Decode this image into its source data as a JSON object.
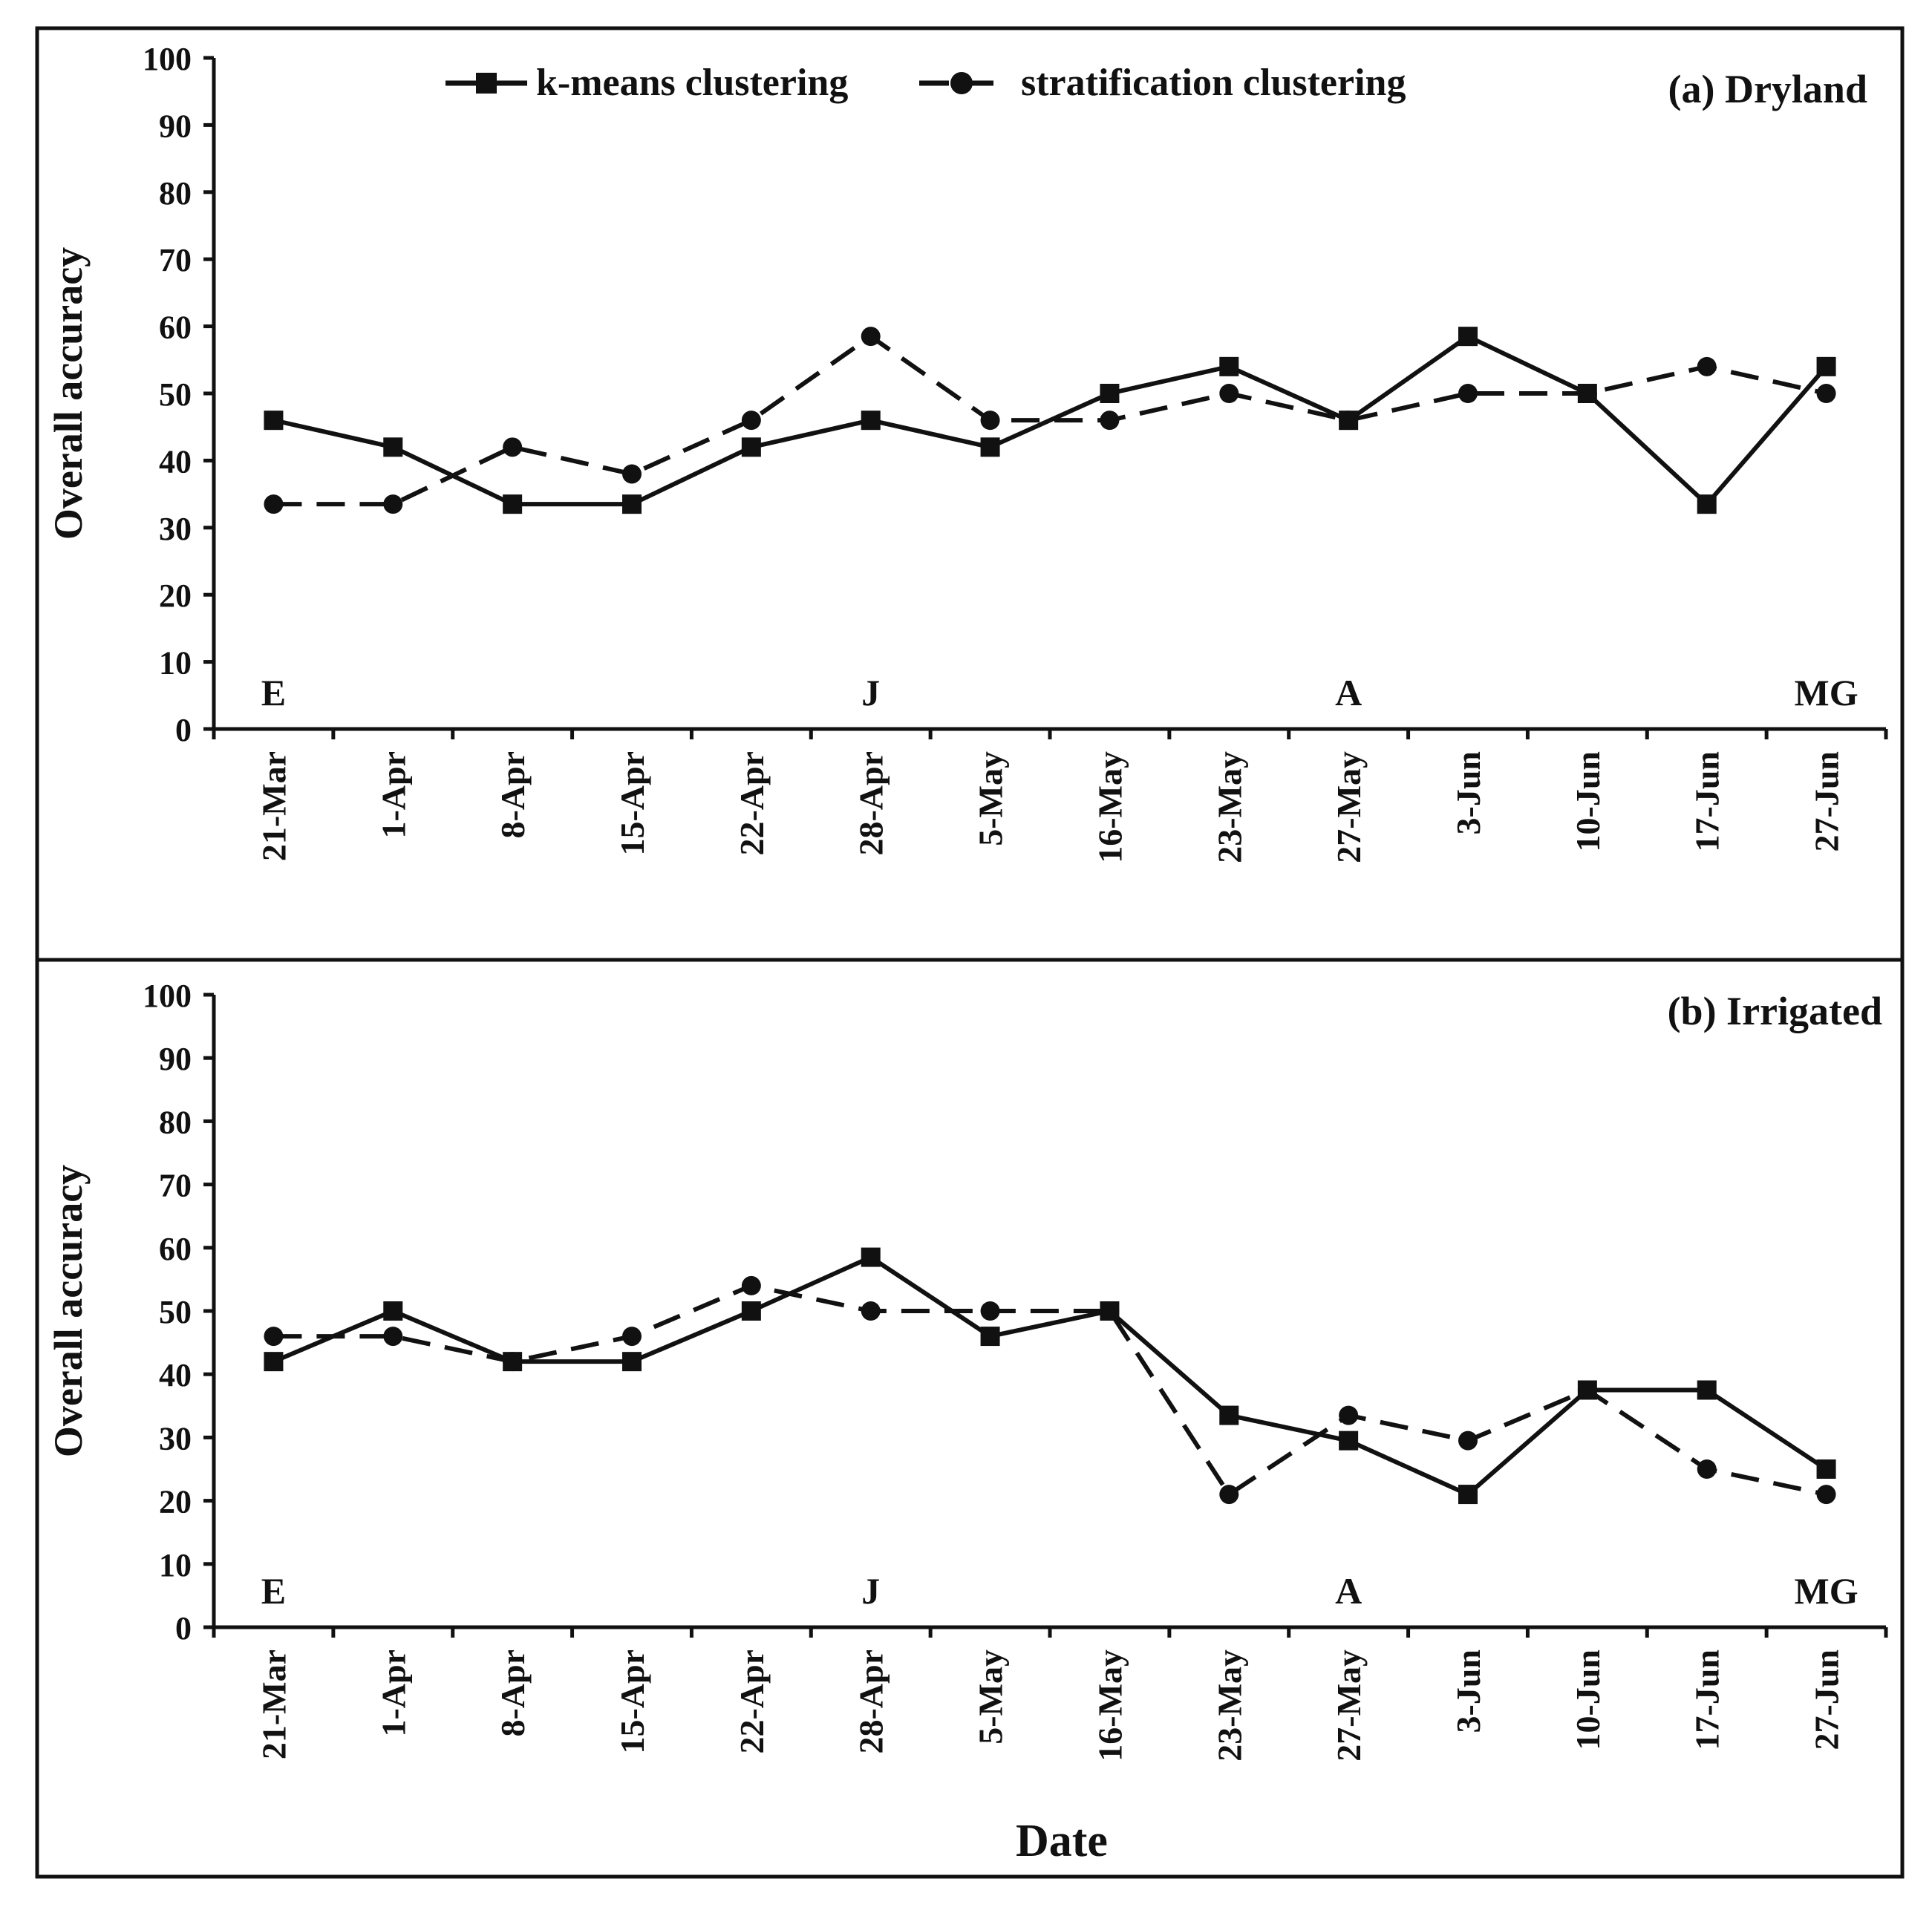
{
  "figure": {
    "xlabel": "Date",
    "legend": [
      {
        "name": "k-means clustering",
        "style": "solid",
        "marker": "square"
      },
      {
        "name": "stratification clustering",
        "style": "dashed",
        "marker": "circle"
      }
    ]
  },
  "chart_data": [
    {
      "type": "line",
      "title": "(a) Dryland",
      "xlabel": "",
      "ylabel": "Overall accuracy",
      "ylim": [
        0,
        100
      ],
      "yticks": [
        0,
        10,
        20,
        30,
        40,
        50,
        60,
        70,
        80,
        90,
        100
      ],
      "categories": [
        "21-Mar",
        "1-Apr",
        "8-Apr",
        "15-Apr",
        "22-Apr",
        "28-Apr",
        "5-May",
        "16-May",
        "23-May",
        "27-May",
        "3-Jun",
        "10-Jun",
        "17-Jun",
        "27-Jun"
      ],
      "stage_labels": [
        {
          "label": "E",
          "category": "21-Mar"
        },
        {
          "label": "J",
          "category": "28-Apr"
        },
        {
          "label": "A",
          "category": "27-May"
        },
        {
          "label": "MG",
          "category": "27-Jun"
        }
      ],
      "series": [
        {
          "name": "k-means clustering",
          "values": [
            46,
            42,
            33.5,
            33.5,
            42,
            46,
            42,
            50,
            54,
            46,
            58.5,
            50,
            33.5,
            54
          ]
        },
        {
          "name": "stratification clustering",
          "values": [
            33.5,
            33.5,
            42,
            38,
            46,
            58.5,
            46,
            46,
            50,
            46,
            50,
            50,
            54,
            50
          ]
        }
      ]
    },
    {
      "type": "line",
      "title": "(b) Irrigated",
      "xlabel": "Date",
      "ylabel": "Overall accuracy",
      "ylim": [
        0,
        100
      ],
      "yticks": [
        0,
        10,
        20,
        30,
        40,
        50,
        60,
        70,
        80,
        90,
        100
      ],
      "categories": [
        "21-Mar",
        "1-Apr",
        "8-Apr",
        "15-Apr",
        "22-Apr",
        "28-Apr",
        "5-May",
        "16-May",
        "23-May",
        "27-May",
        "3-Jun",
        "10-Jun",
        "17-Jun",
        "27-Jun"
      ],
      "stage_labels": [
        {
          "label": "E",
          "category": "21-Mar"
        },
        {
          "label": "J",
          "category": "28-Apr"
        },
        {
          "label": "A",
          "category": "27-May"
        },
        {
          "label": "MG",
          "category": "27-Jun"
        }
      ],
      "series": [
        {
          "name": "k-means clustering",
          "values": [
            42,
            50,
            42,
            42,
            50,
            58.5,
            46,
            50,
            33.5,
            29.5,
            21,
            37.5,
            37.5,
            25
          ]
        },
        {
          "name": "stratification clustering",
          "values": [
            46,
            46,
            42,
            46,
            54,
            50,
            50,
            50,
            21,
            33.5,
            29.5,
            37.5,
            25,
            21
          ]
        }
      ]
    }
  ]
}
